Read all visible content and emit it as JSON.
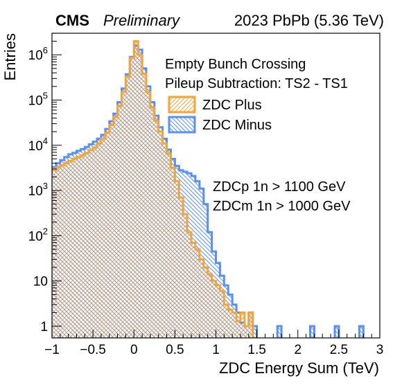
{
  "header": {
    "experiment": "CMS",
    "status": "Preliminary",
    "run_info": "2023 PbPb (5.36 TeV)"
  },
  "annotations": {
    "line1": "Empty Bunch Crossing",
    "line2": "Pileup Subtraction: TS2 - TS1",
    "cut1": "ZDCp 1n > 1100 GeV",
    "cut2": "ZDCm 1n > 1000 GeV"
  },
  "colors": {
    "plus": "#f7a436",
    "minus": "#5790fc"
  },
  "chart_data": {
    "type": "histogram",
    "xlabel": "ZDC Energy Sum (TeV)",
    "ylabel": "Entries",
    "xlim": [
      -1,
      3
    ],
    "ylim": [
      0.55,
      3000000
    ],
    "log_y": true,
    "bin_width": 0.05,
    "x_ticks": [
      {
        "value": -1,
        "label": "−1"
      },
      {
        "value": -0.5,
        "label": "−0.5"
      },
      {
        "value": 0,
        "label": "0"
      },
      {
        "value": 0.5,
        "label": "0.5"
      },
      {
        "value": 1,
        "label": "1"
      },
      {
        "value": 1.5,
        "label": "1.5"
      },
      {
        "value": 2,
        "label": "2"
      },
      {
        "value": 2.5,
        "label": "2.5"
      },
      {
        "value": 3,
        "label": "3"
      }
    ],
    "y_ticks": [
      {
        "value": 1,
        "base": "1",
        "exp": ""
      },
      {
        "value": 10,
        "base": "10",
        "exp": ""
      },
      {
        "value": 100,
        "base": "10",
        "exp": "2"
      },
      {
        "value": 1000,
        "base": "10",
        "exp": "3"
      },
      {
        "value": 10000,
        "base": "10",
        "exp": "4"
      },
      {
        "value": 100000,
        "base": "10",
        "exp": "5"
      },
      {
        "value": 1000000,
        "base": "10",
        "exp": "6"
      }
    ],
    "series": [
      {
        "name": "ZDC Plus",
        "color": "#f7a436",
        "bins": [
          [
            -1.0,
            2800
          ],
          [
            -0.95,
            3200
          ],
          [
            -0.9,
            3600
          ],
          [
            -0.85,
            4000
          ],
          [
            -0.8,
            4500
          ],
          [
            -0.75,
            5000
          ],
          [
            -0.7,
            5500
          ],
          [
            -0.65,
            6000
          ],
          [
            -0.6,
            6800
          ],
          [
            -0.55,
            7800
          ],
          [
            -0.5,
            9000
          ],
          [
            -0.45,
            11000
          ],
          [
            -0.4,
            14000
          ],
          [
            -0.35,
            19000
          ],
          [
            -0.3,
            28000
          ],
          [
            -0.25,
            42000
          ],
          [
            -0.2,
            75000
          ],
          [
            -0.15,
            150000
          ],
          [
            -0.1,
            330000
          ],
          [
            -0.05,
            850000
          ],
          [
            0.0,
            2000000
          ],
          [
            0.05,
            1000000
          ],
          [
            0.1,
            380000
          ],
          [
            0.15,
            150000
          ],
          [
            0.2,
            68000
          ],
          [
            0.25,
            35000
          ],
          [
            0.3,
            20000
          ],
          [
            0.35,
            11000
          ],
          [
            0.4,
            6500
          ],
          [
            0.45,
            3200
          ],
          [
            0.5,
            1600
          ],
          [
            0.55,
            700
          ],
          [
            0.6,
            300
          ],
          [
            0.65,
            120
          ],
          [
            0.7,
            70
          ],
          [
            0.75,
            50
          ],
          [
            0.8,
            30
          ],
          [
            0.85,
            20
          ],
          [
            0.9,
            14
          ],
          [
            0.95,
            10
          ],
          [
            1.0,
            8
          ],
          [
            1.05,
            6
          ],
          [
            1.1,
            3
          ],
          [
            1.15,
            2.3
          ],
          [
            1.2,
            2
          ],
          [
            1.25,
            1.3
          ],
          [
            1.3,
            2
          ],
          [
            1.35,
            1
          ],
          [
            1.4,
            2
          ]
        ]
      },
      {
        "name": "ZDC Minus",
        "color": "#5790fc",
        "bins": [
          [
            -1.0,
            3300
          ],
          [
            -0.95,
            4000
          ],
          [
            -0.9,
            4700
          ],
          [
            -0.85,
            5500
          ],
          [
            -0.8,
            6300
          ],
          [
            -0.75,
            6800
          ],
          [
            -0.7,
            7500
          ],
          [
            -0.65,
            8200
          ],
          [
            -0.6,
            9200
          ],
          [
            -0.55,
            10500
          ],
          [
            -0.5,
            12000
          ],
          [
            -0.45,
            14000
          ],
          [
            -0.4,
            17000
          ],
          [
            -0.35,
            23000
          ],
          [
            -0.3,
            34000
          ],
          [
            -0.25,
            50000
          ],
          [
            -0.2,
            90000
          ],
          [
            -0.15,
            180000
          ],
          [
            -0.1,
            370000
          ],
          [
            -0.05,
            900000
          ],
          [
            0.0,
            1600000
          ],
          [
            0.05,
            1300000
          ],
          [
            0.1,
            500000
          ],
          [
            0.15,
            200000
          ],
          [
            0.2,
            90000
          ],
          [
            0.25,
            45000
          ],
          [
            0.3,
            25000
          ],
          [
            0.35,
            14000
          ],
          [
            0.4,
            8000
          ],
          [
            0.45,
            5000
          ],
          [
            0.5,
            3500
          ],
          [
            0.55,
            2800
          ],
          [
            0.6,
            2600
          ],
          [
            0.65,
            2400
          ],
          [
            0.7,
            2100
          ],
          [
            0.75,
            1600
          ],
          [
            0.8,
            1100
          ],
          [
            0.85,
            500
          ],
          [
            0.9,
            120
          ],
          [
            0.95,
            45
          ],
          [
            1.0,
            25
          ],
          [
            1.05,
            13
          ],
          [
            1.1,
            8
          ],
          [
            1.15,
            5
          ],
          [
            1.2,
            3
          ],
          [
            1.25,
            2
          ],
          [
            1.3,
            1.2
          ],
          [
            1.35,
            1
          ],
          [
            1.4,
            2
          ],
          [
            1.45,
            1
          ],
          [
            1.75,
            1
          ],
          [
            2.15,
            1
          ],
          [
            2.45,
            1
          ],
          [
            2.75,
            1
          ]
        ]
      }
    ],
    "legend": {
      "placement": "top-right",
      "entries": [
        "ZDC Plus",
        "ZDC Minus"
      ]
    }
  }
}
